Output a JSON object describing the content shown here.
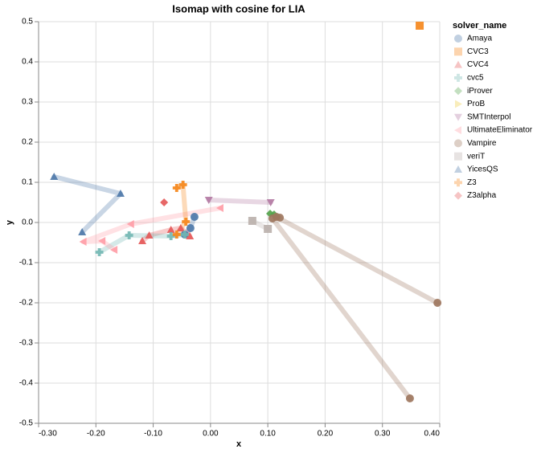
{
  "chart_data": {
    "type": "scatter",
    "title": "Isomap with cosine for LIA",
    "x_label": "x",
    "y_label": "y",
    "legend_title": "solver_name",
    "grid": true,
    "legend_position": "right",
    "xlim": [
      -0.3,
      0.4
    ],
    "xticks": [
      {
        "value": -0.3,
        "label": "-0.30"
      },
      {
        "value": -0.2,
        "label": "-0.20"
      },
      {
        "value": -0.1,
        "label": "-0.10"
      },
      {
        "value": 0,
        "label": "0.00"
      },
      {
        "value": 0.1,
        "label": "0.10"
      },
      {
        "value": 0.2,
        "label": "0.20"
      },
      {
        "value": 0.3,
        "label": "0.30"
      },
      {
        "value": 0.4,
        "label": "0.40"
      }
    ],
    "ylim": [
      -0.5,
      0.5
    ],
    "yticks": [
      {
        "value": -0.5,
        "label": "-0.5"
      },
      {
        "value": -0.4,
        "label": "-0.4"
      },
      {
        "value": -0.3,
        "label": "-0.3"
      },
      {
        "value": -0.2,
        "label": "-0.2"
      },
      {
        "value": -0.1,
        "label": "-0.1"
      },
      {
        "value": 0,
        "label": "0.0"
      },
      {
        "value": 0.1,
        "label": "0.1"
      },
      {
        "value": 0.2,
        "label": "0.2"
      },
      {
        "value": 0.3,
        "label": "0.3"
      },
      {
        "value": 0.4,
        "label": "0.4"
      },
      {
        "value": 0.5,
        "label": "0.5"
      }
    ],
    "series": [
      {
        "name": "Amaya",
        "color": "#4c78a8",
        "shape": "circle",
        "x": [
          -0.028,
          -0.035,
          -0.045
        ],
        "values": [
          0.014,
          -0.014,
          -0.03
        ]
      },
      {
        "name": "CVC3",
        "color": "#f58518",
        "shape": "square",
        "x": [
          0.365
        ],
        "values": [
          0.49
        ]
      },
      {
        "name": "CVC4",
        "color": "#e45756",
        "shape": "triangle-up",
        "x": [
          -0.119,
          -0.107,
          -0.069,
          -0.052,
          -0.036
        ],
        "values": [
          -0.046,
          -0.032,
          -0.018,
          -0.014,
          -0.034
        ]
      },
      {
        "name": "cvc5",
        "color": "#72b7b2",
        "shape": "cross",
        "x": [
          -0.194,
          -0.142,
          -0.069,
          -0.045
        ],
        "values": [
          -0.074,
          -0.032,
          -0.034,
          -0.03
        ]
      },
      {
        "name": "iProver",
        "color": "#54a24b",
        "shape": "diamond",
        "x": [
          0.104,
          0.111
        ],
        "values": [
          0.022,
          0.02
        ]
      },
      {
        "name": "ProB",
        "color": "#eeca3b",
        "shape": "triangle-right",
        "x": [],
        "values": []
      },
      {
        "name": "SMTInterpol",
        "color": "#b279a2",
        "shape": "triangle-down",
        "x": [
          -0.003,
          0.105
        ],
        "values": [
          0.056,
          0.05
        ]
      },
      {
        "name": "UltimateEliminator",
        "color": "#ff9da6",
        "shape": "triangle-left",
        "x": [
          0.017,
          -0.139,
          -0.222,
          -0.189,
          -0.168
        ],
        "values": [
          0.036,
          -0.004,
          -0.048,
          -0.046,
          -0.068
        ]
      },
      {
        "name": "Vampire",
        "color": "#9d755d",
        "shape": "circle",
        "x": [
          0.348,
          0.108,
          0.121,
          0.115,
          0.396
        ],
        "values": [
          -0.438,
          0.01,
          0.012,
          0.014,
          -0.2
        ]
      },
      {
        "name": "veriT",
        "color": "#bab0ac",
        "shape": "square",
        "x": [
          0.073,
          0.1
        ],
        "values": [
          0.004,
          -0.016
        ]
      },
      {
        "name": "YicesQS",
        "color": "#4c78a8",
        "shape": "triangle-up",
        "x": [
          -0.273,
          -0.157,
          -0.224
        ],
        "values": [
          0.114,
          0.072,
          -0.024
        ]
      },
      {
        "name": "Z3",
        "color": "#f58518",
        "shape": "cross",
        "x": [
          -0.059,
          -0.048,
          -0.043,
          -0.059
        ],
        "values": [
          0.086,
          0.094,
          0.002,
          -0.03
        ]
      },
      {
        "name": "Z3alpha",
        "color": "#e45756",
        "shape": "diamond",
        "x": [
          -0.081
        ],
        "values": [
          0.05
        ]
      }
    ]
  }
}
